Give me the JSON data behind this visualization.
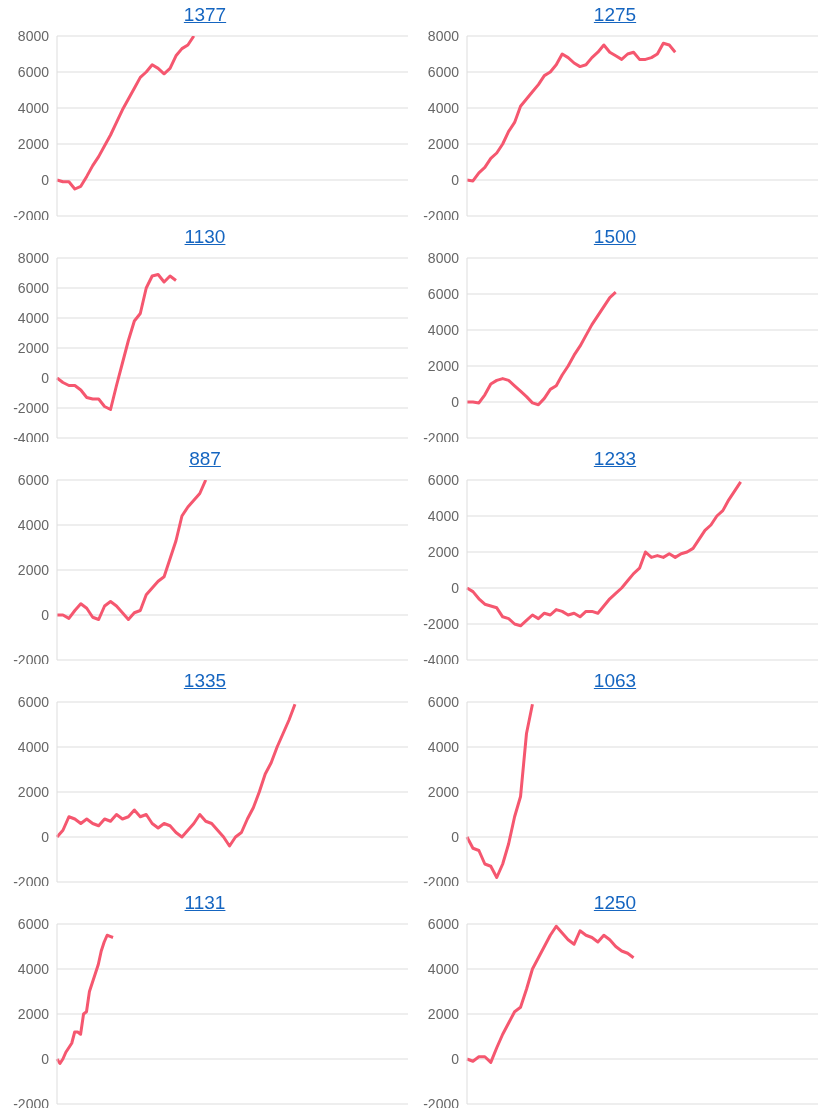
{
  "chart_data": [
    {
      "type": "line",
      "title": "1377",
      "categories": [
        null,
        null,
        null,
        null,
        null,
        null,
        null,
        null,
        null,
        null,
        null,
        null,
        null,
        null,
        null,
        null,
        null,
        null,
        null,
        null,
        null,
        null,
        null,
        null,
        null,
        null,
        null,
        null,
        null,
        null,
        null,
        null,
        null,
        null,
        null,
        null,
        null,
        null,
        null,
        null,
        null,
        null,
        null,
        null,
        null,
        null,
        null,
        null,
        null,
        null,
        null,
        null,
        null,
        null,
        null,
        null,
        null,
        null,
        null,
        null
      ],
      "series": [
        {
          "color": "#f5576f",
          "values": [
            0,
            -100,
            -100,
            -500,
            -350,
            200,
            800,
            1300,
            1900,
            2500,
            3200,
            3900,
            4500,
            5100,
            5700,
            6000,
            6400,
            6200,
            5900,
            6200,
            6900,
            7300,
            7500,
            8000,
            null,
            null,
            null,
            null,
            null,
            null,
            null,
            null,
            null,
            null,
            null,
            null,
            null,
            null,
            null,
            null,
            null,
            null,
            null,
            null,
            null,
            null,
            null,
            null,
            null,
            null,
            null,
            null,
            null,
            null,
            null,
            null,
            null,
            null,
            null,
            null
          ]
        }
      ],
      "ylim": [
        -2000,
        8000
      ],
      "yticks": [
        -2000,
        0,
        2000,
        4000,
        6000,
        8000
      ],
      "grid": "y",
      "tick_labels": "y",
      "legend": false,
      "marker": "none"
    },
    {
      "type": "line",
      "title": "1275",
      "categories": [
        null,
        null,
        null,
        null,
        null,
        null,
        null,
        null,
        null,
        null,
        null,
        null,
        null,
        null,
        null,
        null,
        null,
        null,
        null,
        null,
        null,
        null,
        null,
        null,
        null,
        null,
        null,
        null,
        null,
        null,
        null,
        null,
        null,
        null,
        null,
        null,
        null,
        null,
        null,
        null,
        null,
        null,
        null,
        null,
        null,
        null,
        null,
        null,
        null,
        null,
        null,
        null,
        null,
        null,
        null,
        null,
        null,
        null,
        null,
        null
      ],
      "series": [
        {
          "color": "#f5576f",
          "values": [
            0,
            -50,
            400,
            700,
            1200,
            1500,
            2000,
            2700,
            3200,
            4100,
            4500,
            4900,
            5300,
            5800,
            6000,
            6400,
            7000,
            6800,
            6500,
            6300,
            6400,
            6800,
            7100,
            7500,
            7100,
            6900,
            6700,
            7000,
            7100,
            6700,
            6700,
            6800,
            7000,
            7600,
            7500,
            7100,
            null,
            null,
            null,
            null,
            null,
            null,
            null,
            null,
            null,
            null,
            null,
            null,
            null,
            null,
            null,
            null,
            null,
            null,
            null,
            null,
            null,
            null,
            null,
            null
          ]
        }
      ],
      "ylim": [
        -2000,
        8000
      ],
      "yticks": [
        -2000,
        0,
        2000,
        4000,
        6000,
        8000
      ],
      "grid": "y",
      "tick_labels": "y",
      "legend": false,
      "marker": "none"
    },
    {
      "type": "line",
      "title": "1130",
      "categories": [
        null,
        null,
        null,
        null,
        null,
        null,
        null,
        null,
        null,
        null,
        null,
        null,
        null,
        null,
        null,
        null,
        null,
        null,
        null,
        null,
        null,
        null,
        null,
        null,
        null,
        null,
        null,
        null,
        null,
        null,
        null,
        null,
        null,
        null,
        null,
        null,
        null,
        null,
        null,
        null,
        null,
        null,
        null,
        null,
        null,
        null,
        null,
        null,
        null,
        null,
        null,
        null,
        null,
        null,
        null,
        null,
        null,
        null,
        null,
        null
      ],
      "series": [
        {
          "color": "#f5576f",
          "values": [
            0,
            -300,
            -500,
            -500,
            -800,
            -1300,
            -1400,
            -1400,
            -1900,
            -2100,
            -500,
            1000,
            2500,
            3800,
            4300,
            6000,
            6800,
            6900,
            6400,
            6800,
            6500,
            null,
            null,
            null,
            null,
            null,
            null,
            null,
            null,
            null,
            null,
            null,
            null,
            null,
            null,
            null,
            null,
            null,
            null,
            null,
            null,
            null,
            null,
            null,
            null,
            null,
            null,
            null,
            null,
            null,
            null,
            null,
            null,
            null,
            null,
            null,
            null,
            null,
            null,
            null
          ]
        }
      ],
      "ylim": [
        -4000,
        8000
      ],
      "yticks": [
        -4000,
        -2000,
        0,
        2000,
        4000,
        6000,
        8000
      ],
      "grid": "y",
      "tick_labels": "y",
      "legend": false,
      "marker": "none"
    },
    {
      "type": "line",
      "title": "1500",
      "categories": [
        null,
        null,
        null,
        null,
        null,
        null,
        null,
        null,
        null,
        null,
        null,
        null,
        null,
        null,
        null,
        null,
        null,
        null,
        null,
        null,
        null,
        null,
        null,
        null,
        null,
        null,
        null,
        null,
        null,
        null,
        null,
        null,
        null,
        null,
        null,
        null,
        null,
        null,
        null,
        null,
        null,
        null,
        null,
        null,
        null,
        null,
        null,
        null,
        null,
        null,
        null,
        null,
        null,
        null,
        null,
        null,
        null,
        null,
        null,
        null
      ],
      "series": [
        {
          "color": "#f5576f",
          "values": [
            0,
            0,
            -50,
            400,
            1000,
            1200,
            1300,
            1200,
            900,
            600,
            300,
            -50,
            -150,
            200,
            700,
            900,
            1500,
            2000,
            2600,
            3100,
            3700,
            4300,
            4800,
            5300,
            5800,
            6100,
            null,
            null,
            null,
            null,
            null,
            null,
            null,
            null,
            null,
            null,
            null,
            null,
            null,
            null,
            null,
            null,
            null,
            null,
            null,
            null,
            null,
            null,
            null,
            null,
            null,
            null,
            null,
            null,
            null,
            null,
            null,
            null,
            null,
            null
          ]
        }
      ],
      "ylim": [
        -2000,
        8000
      ],
      "yticks": [
        -2000,
        0,
        2000,
        4000,
        6000,
        8000
      ],
      "grid": "y",
      "tick_labels": "y",
      "legend": false,
      "marker": "none"
    },
    {
      "type": "line",
      "title": "887",
      "categories": [
        null,
        null,
        null,
        null,
        null,
        null,
        null,
        null,
        null,
        null,
        null,
        null,
        null,
        null,
        null,
        null,
        null,
        null,
        null,
        null,
        null,
        null,
        null,
        null,
        null,
        null,
        null,
        null,
        null,
        null,
        null,
        null,
        null,
        null,
        null,
        null,
        null,
        null,
        null,
        null,
        null,
        null,
        null,
        null,
        null,
        null,
        null,
        null,
        null,
        null,
        null,
        null,
        null,
        null,
        null,
        null,
        null,
        null,
        null,
        null
      ],
      "series": [
        {
          "color": "#f5576f",
          "values": [
            0,
            0,
            -150,
            200,
            500,
            300,
            -100,
            -200,
            400,
            600,
            400,
            100,
            -200,
            100,
            200,
            900,
            1200,
            1500,
            1700,
            2500,
            3300,
            4400,
            4800,
            5100,
            5400,
            6000,
            null,
            null,
            null,
            null,
            null,
            null,
            null,
            null,
            null,
            null,
            null,
            null,
            null,
            null,
            null,
            null,
            null,
            null,
            null,
            null,
            null,
            null,
            null,
            null,
            null,
            null,
            null,
            null,
            null,
            null,
            null,
            null,
            null,
            null
          ]
        }
      ],
      "ylim": [
        -2000,
        6000
      ],
      "yticks": [
        -2000,
        0,
        2000,
        4000,
        6000
      ],
      "grid": "y",
      "tick_labels": "y",
      "legend": false,
      "marker": "none"
    },
    {
      "type": "line",
      "title": "1233",
      "categories": [
        null,
        null,
        null,
        null,
        null,
        null,
        null,
        null,
        null,
        null,
        null,
        null,
        null,
        null,
        null,
        null,
        null,
        null,
        null,
        null,
        null,
        null,
        null,
        null,
        null,
        null,
        null,
        null,
        null,
        null,
        null,
        null,
        null,
        null,
        null,
        null,
        null,
        null,
        null,
        null,
        null,
        null,
        null,
        null,
        null,
        null,
        null,
        null,
        null,
        null,
        null,
        null,
        null,
        null,
        null,
        null,
        null,
        null,
        null,
        null
      ],
      "series": [
        {
          "color": "#f5576f",
          "values": [
            0,
            -200,
            -600,
            -900,
            -1000,
            -1100,
            -1600,
            -1700,
            -2000,
            -2100,
            -1800,
            -1500,
            -1700,
            -1400,
            -1500,
            -1200,
            -1300,
            -1500,
            -1400,
            -1600,
            -1300,
            -1300,
            -1400,
            -1000,
            -600,
            -300,
            0,
            400,
            800,
            1100,
            2000,
            1700,
            1800,
            1700,
            1900,
            1700,
            1900,
            2000,
            2200,
            2700,
            3200,
            3500,
            4000,
            4300,
            4900,
            5400,
            5900,
            null,
            null,
            null,
            null,
            null,
            null,
            null,
            null,
            null,
            null,
            null,
            null,
            null
          ]
        }
      ],
      "ylim": [
        -4000,
        6000
      ],
      "yticks": [
        -4000,
        -2000,
        0,
        2000,
        4000,
        6000
      ],
      "grid": "y",
      "tick_labels": "y",
      "legend": false,
      "marker": "none"
    },
    {
      "type": "line",
      "title": "1335",
      "categories": [
        null,
        null,
        null,
        null,
        null,
        null,
        null,
        null,
        null,
        null,
        null,
        null,
        null,
        null,
        null,
        null,
        null,
        null,
        null,
        null,
        null,
        null,
        null,
        null,
        null,
        null,
        null,
        null,
        null,
        null,
        null,
        null,
        null,
        null,
        null,
        null,
        null,
        null,
        null,
        null,
        null,
        null,
        null,
        null,
        null,
        null,
        null,
        null,
        null,
        null,
        null,
        null,
        null,
        null,
        null,
        null,
        null,
        null,
        null,
        null
      ],
      "series": [
        {
          "color": "#f5576f",
          "values": [
            0,
            300,
            900,
            800,
            600,
            800,
            600,
            500,
            800,
            700,
            1000,
            800,
            900,
            1200,
            900,
            1000,
            600,
            400,
            600,
            500,
            200,
            0,
            300,
            600,
            1000,
            700,
            600,
            300,
            0,
            -400,
            0,
            200,
            800,
            1300,
            2000,
            2800,
            3300,
            4000,
            4600,
            5200,
            5900,
            null,
            null,
            null,
            null,
            null,
            null,
            null,
            null,
            null,
            null,
            null,
            null,
            null,
            null,
            null,
            null,
            null,
            null,
            null
          ]
        }
      ],
      "ylim": [
        -2000,
        6000
      ],
      "yticks": [
        -2000,
        0,
        2000,
        4000,
        6000
      ],
      "grid": "y",
      "tick_labels": "y",
      "legend": false,
      "marker": "none"
    },
    {
      "type": "line",
      "title": "1063",
      "categories": [
        null,
        null,
        null,
        null,
        null,
        null,
        null,
        null,
        null,
        null,
        null,
        null,
        null,
        null,
        null,
        null,
        null,
        null,
        null,
        null,
        null,
        null,
        null,
        null,
        null,
        null,
        null,
        null,
        null,
        null,
        null,
        null,
        null,
        null,
        null,
        null,
        null,
        null,
        null,
        null,
        null,
        null,
        null,
        null,
        null,
        null,
        null,
        null,
        null,
        null,
        null,
        null,
        null,
        null,
        null,
        null,
        null,
        null,
        null,
        null
      ],
      "series": [
        {
          "color": "#f5576f",
          "values": [
            0,
            -500,
            -600,
            -1200,
            -1300,
            -1800,
            -1200,
            -300,
            900,
            1800,
            4600,
            5900,
            null,
            null,
            null,
            null,
            null,
            null,
            null,
            null,
            null,
            null,
            null,
            null,
            null,
            null,
            null,
            null,
            null,
            null,
            null,
            null,
            null,
            null,
            null,
            null,
            null,
            null,
            null,
            null,
            null,
            null,
            null,
            null,
            null,
            null,
            null,
            null,
            null,
            null,
            null,
            null,
            null,
            null,
            null,
            null,
            null,
            null,
            null,
            null
          ]
        }
      ],
      "ylim": [
        -2000,
        6000
      ],
      "yticks": [
        -2000,
        0,
        2000,
        4000,
        6000
      ],
      "grid": "y",
      "tick_labels": "y",
      "legend": false,
      "marker": "none"
    },
    {
      "type": "line",
      "title": "1131",
      "categories": [
        null,
        null,
        null,
        null,
        null,
        null,
        null,
        null,
        null,
        null,
        null,
        null,
        null,
        null,
        null,
        null,
        null,
        null,
        null,
        null,
        null,
        null,
        null,
        null,
        null,
        null,
        null,
        null,
        null,
        null,
        null,
        null,
        null,
        null,
        null,
        null,
        null,
        null,
        null,
        null,
        null,
        null,
        null,
        null,
        null,
        null,
        null,
        null,
        null,
        null,
        null,
        null,
        null,
        null,
        null,
        null,
        null,
        null,
        null,
        null,
        null,
        null,
        null,
        null,
        null,
        null,
        null,
        null,
        null,
        null,
        null,
        null,
        null,
        null,
        null,
        null,
        null,
        null,
        null,
        null,
        null,
        null,
        null,
        null,
        null,
        null,
        null,
        null,
        null,
        null,
        null,
        null,
        null,
        null,
        null,
        null,
        null,
        null,
        null,
        null,
        null,
        null,
        null,
        null,
        null,
        null,
        null,
        null,
        null,
        null,
        null,
        null,
        null,
        null,
        null,
        null,
        null,
        null,
        null,
        null
      ],
      "series": [
        {
          "color": "#f5576f",
          "values": [
            0,
            -200,
            0,
            300,
            500,
            700,
            1200,
            1200,
            1100,
            2000,
            2100,
            3000,
            3400,
            3800,
            4200,
            4800,
            5200,
            5500,
            5450,
            5400,
            null,
            null,
            null,
            null,
            null,
            null,
            null,
            null,
            null,
            null,
            null,
            null,
            null,
            null,
            null,
            null,
            null,
            null,
            null,
            null,
            null,
            null,
            null,
            null,
            null,
            null,
            null,
            null,
            null,
            null,
            null,
            null,
            null,
            null,
            null,
            null,
            null,
            null,
            null,
            null,
            null,
            null,
            null,
            null,
            null,
            null,
            null,
            null,
            null,
            null,
            null,
            null,
            null,
            null,
            null,
            null,
            null,
            null,
            null,
            null,
            null,
            null,
            null,
            null,
            null,
            null,
            null,
            null,
            null,
            null,
            null,
            null,
            null,
            null,
            null,
            null,
            null,
            null,
            null,
            null,
            null,
            null,
            null,
            null,
            null,
            null,
            null,
            null,
            null,
            null,
            null,
            null,
            null,
            null,
            null,
            null,
            null,
            null,
            null,
            null
          ]
        }
      ],
      "ylim": [
        -2000,
        6000
      ],
      "yticks": [
        -2000,
        0,
        2000,
        4000,
        6000
      ],
      "grid": "y",
      "tick_labels": "y",
      "legend": false,
      "marker": "none"
    },
    {
      "type": "line",
      "title": "1250",
      "categories": [
        null,
        null,
        null,
        null,
        null,
        null,
        null,
        null,
        null,
        null,
        null,
        null,
        null,
        null,
        null,
        null,
        null,
        null,
        null,
        null,
        null,
        null,
        null,
        null,
        null,
        null,
        null,
        null,
        null,
        null,
        null,
        null,
        null,
        null,
        null,
        null,
        null,
        null,
        null,
        null,
        null,
        null,
        null,
        null,
        null,
        null,
        null,
        null,
        null,
        null,
        null,
        null,
        null,
        null,
        null,
        null,
        null,
        null,
        null,
        null
      ],
      "series": [
        {
          "color": "#f5576f",
          "values": [
            0,
            -100,
            100,
            100,
            -150,
            500,
            1100,
            1600,
            2100,
            2300,
            3100,
            4000,
            4500,
            5000,
            5500,
            5900,
            5600,
            5300,
            5100,
            5700,
            5500,
            5400,
            5200,
            5500,
            5300,
            5000,
            4800,
            4700,
            4500,
            null,
            null,
            null,
            null,
            null,
            null,
            null,
            null,
            null,
            null,
            null,
            null,
            null,
            null,
            null,
            null,
            null,
            null,
            null,
            null,
            null,
            null,
            null,
            null,
            null,
            null,
            null,
            null,
            null,
            null,
            null
          ]
        }
      ],
      "ylim": [
        -2000,
        6000
      ],
      "yticks": [
        -2000,
        0,
        2000,
        4000,
        6000
      ],
      "grid": "y",
      "tick_labels": "y",
      "legend": false,
      "marker": "none"
    }
  ]
}
